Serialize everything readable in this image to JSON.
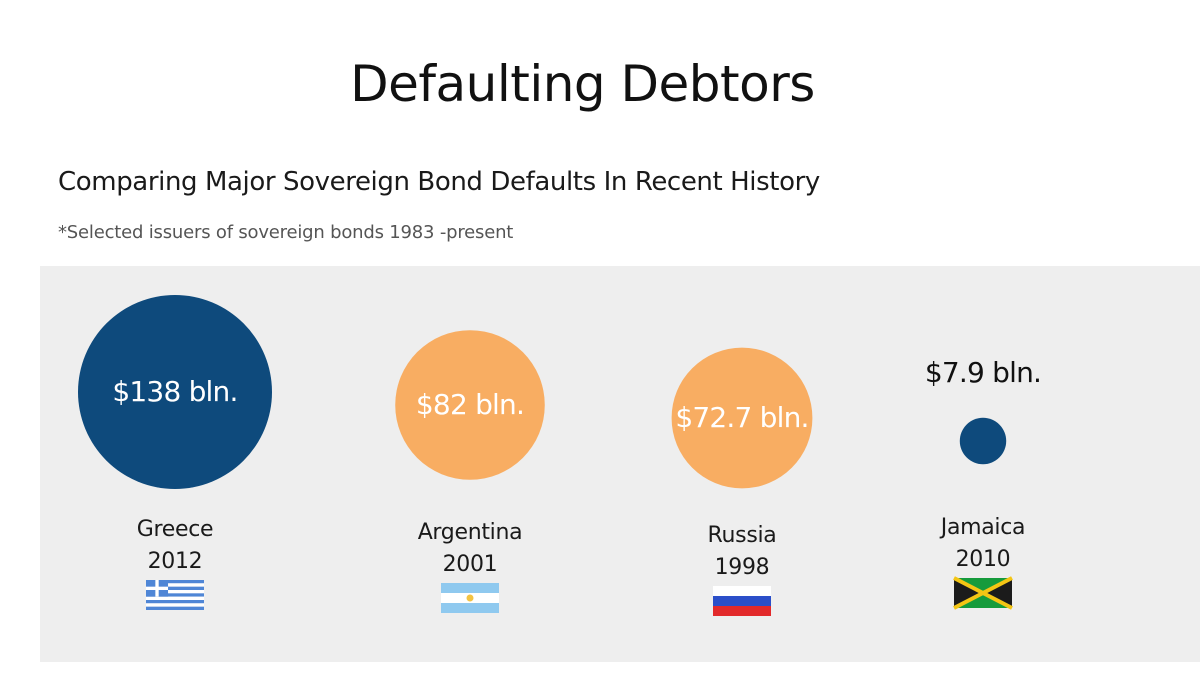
{
  "title": "Defaulting Debtors",
  "subtitle": "Comparing Major Sovereign Bond Defaults In Recent History",
  "note": "*Selected issuers of sovereign bonds 1983 -present",
  "chart_data": {
    "type": "bubble",
    "title": "Defaulting Debtors",
    "subtitle": "Comparing Major Sovereign Bond Defaults In Recent History",
    "unit": "bln.",
    "items": [
      {
        "country": "Greece",
        "year": "2012",
        "value": 138,
        "label": "$138 bln.",
        "color": "#0e4a7c",
        "flag": "greece-flag"
      },
      {
        "country": "Argentina",
        "year": "2001",
        "value": 82,
        "label": "$82 bln.",
        "color": "#f8ad62",
        "flag": "argentina-flag"
      },
      {
        "country": "Russia",
        "year": "1998",
        "value": 72.7,
        "label": "$72.7 bln.",
        "color": "#f8ad62",
        "flag": "russia-flag"
      },
      {
        "country": "Jamaica",
        "year": "2010",
        "value": 7.9,
        "label": "$7.9 bln.",
        "color": "#0e4a7c",
        "flag": "jamaica-flag"
      }
    ]
  },
  "colors": {
    "dark_blue": "#0e4a7c",
    "orange": "#f8ad62",
    "panel": "#eeeeee"
  }
}
